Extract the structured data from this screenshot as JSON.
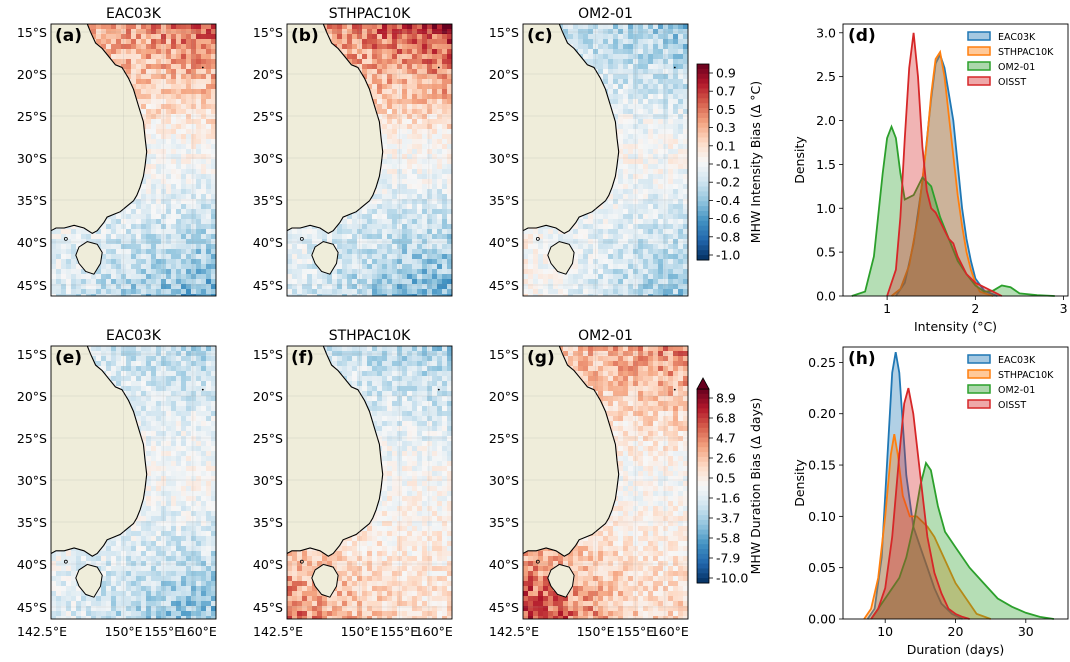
{
  "maps": {
    "lon_ticks": [
      "142.5°E",
      "150°E",
      "155°E",
      "160°E"
    ],
    "lat_ticks": [
      "15°S",
      "20°S",
      "25°S",
      "30°S",
      "35°S",
      "40°S",
      "45°S"
    ],
    "land_color": "#efedda",
    "rows": [
      {
        "colorbar": {
          "label": "MHW Intensity Bias (Δ °C)",
          "ticks": [
            "0.9",
            "0.7",
            "0.5",
            "0.3",
            "0.1",
            "-0.1",
            "-0.2",
            "-0.4",
            "-0.6",
            "-0.8",
            "-1.0"
          ],
          "extend_top": false
        },
        "panels": [
          {
            "tag": "(a)",
            "title": "EAC03K",
            "north": 0.55,
            "south": -0.45,
            "south_extra": 0.15
          },
          {
            "tag": "(b)",
            "title": "STHPAC10K",
            "north": 0.7,
            "south": -0.45,
            "south_extra": 0.15
          },
          {
            "tag": "(c)",
            "title": "OM2-01",
            "north": -0.35,
            "south": -0.35,
            "south_extra": 0.25
          }
        ]
      },
      {
        "colorbar": {
          "label": "MHW Duration Bias (Δ days)",
          "ticks": [
            "8.9",
            "6.8",
            "4.7",
            "2.6",
            "0.5",
            "-1.6",
            "-3.7",
            "-5.8",
            "-7.9",
            "-10.0"
          ],
          "extend_top": true
        },
        "panels": [
          {
            "tag": "(e)",
            "title": "EAC03K",
            "north": -0.25,
            "south": -0.4,
            "south_extra": 0.15
          },
          {
            "tag": "(f)",
            "title": "STHPAC10K",
            "north": -0.3,
            "south": 0.15,
            "south_extra": 0.45
          },
          {
            "tag": "(g)",
            "title": "OM2-01",
            "north": 0.45,
            "south": 0.2,
            "south_extra": 0.65
          }
        ]
      }
    ]
  },
  "chart_data": [
    {
      "type": "area",
      "panel": "(d)",
      "xlabel": "Intensity (°C)",
      "ylabel": "Density",
      "xlim": [
        0.5,
        3.05
      ],
      "ylim": [
        0,
        3.1
      ],
      "x_ticks": [
        1,
        2,
        3
      ],
      "y_ticks": [
        "0.0",
        "0.5",
        "1.0",
        "1.5",
        "2.0",
        "2.5",
        "3.0"
      ],
      "legend_position": "top-right",
      "series": [
        {
          "name": "EAC03K",
          "color": "#1f77b4",
          "fill": "#a5c8e1",
          "x": [
            1.1,
            1.2,
            1.3,
            1.4,
            1.5,
            1.55,
            1.6,
            1.65,
            1.7,
            1.75,
            1.8,
            1.85,
            1.9,
            1.95,
            2.0,
            2.1,
            2.25
          ],
          "y": [
            0,
            0.15,
            0.6,
            1.3,
            2.25,
            2.65,
            2.75,
            2.6,
            2.3,
            2.0,
            1.5,
            1.0,
            0.65,
            0.4,
            0.2,
            0.06,
            0
          ]
        },
        {
          "name": "STHPAC10K",
          "color": "#ff7f0e",
          "fill": "#ffc999",
          "x": [
            1.05,
            1.15,
            1.25,
            1.35,
            1.45,
            1.5,
            1.55,
            1.6,
            1.65,
            1.7,
            1.75,
            1.8,
            1.85,
            1.9,
            1.95,
            2.0,
            2.05,
            2.2
          ],
          "y": [
            0,
            0.08,
            0.35,
            0.9,
            1.75,
            2.3,
            2.7,
            2.78,
            2.5,
            2.05,
            1.6,
            1.15,
            0.8,
            0.5,
            0.3,
            0.15,
            0.05,
            0
          ]
        },
        {
          "name": "OM2-01",
          "color": "#2ca02c",
          "fill": "#acd7ac",
          "x": [
            0.6,
            0.75,
            0.85,
            0.95,
            1.0,
            1.05,
            1.1,
            1.15,
            1.2,
            1.3,
            1.4,
            1.5,
            1.6,
            1.7,
            1.8,
            1.9,
            2.0,
            2.1,
            2.2,
            2.3,
            2.4,
            2.5,
            2.7,
            2.9
          ],
          "y": [
            0,
            0.05,
            0.45,
            1.4,
            1.8,
            1.93,
            1.8,
            1.4,
            1.1,
            1.15,
            1.35,
            1.25,
            0.9,
            0.65,
            0.4,
            0.25,
            0.12,
            0.05,
            0.06,
            0.12,
            0.1,
            0.03,
            0.01,
            0
          ]
        },
        {
          "name": "OISST",
          "color": "#d62728",
          "fill": "#eea8a9",
          "x": [
            1.0,
            1.1,
            1.15,
            1.2,
            1.25,
            1.3,
            1.35,
            1.4,
            1.45,
            1.5,
            1.55,
            1.6,
            1.65,
            1.7,
            1.75,
            1.8,
            1.85,
            1.9,
            2.0,
            2.1,
            2.2,
            2.3
          ],
          "y": [
            0,
            0.3,
            0.9,
            1.8,
            2.6,
            3.0,
            2.5,
            1.7,
            1.2,
            1.0,
            0.95,
            0.85,
            0.75,
            0.65,
            0.6,
            0.45,
            0.35,
            0.25,
            0.15,
            0.1,
            0.05,
            0
          ]
        }
      ]
    },
    {
      "type": "area",
      "panel": "(h)",
      "xlabel": "Duration (days)",
      "ylabel": "Density",
      "xlim": [
        4,
        36
      ],
      "ylim": [
        0,
        0.265
      ],
      "x_ticks": [
        10,
        20,
        30
      ],
      "y_ticks": [
        "0.00",
        "0.05",
        "0.10",
        "0.15",
        "0.20",
        "0.25"
      ],
      "legend_position": "top-right",
      "series": [
        {
          "name": "EAC03K",
          "color": "#1f77b4",
          "fill": "#a5c8e1",
          "x": [
            7.5,
            8.5,
            9.5,
            10.5,
            11.0,
            11.5,
            12.0,
            12.5,
            13.0,
            14.0,
            15.0,
            16.0,
            17.0,
            18.0,
            19.5,
            21.0
          ],
          "y": [
            0,
            0.01,
            0.06,
            0.18,
            0.24,
            0.26,
            0.24,
            0.19,
            0.14,
            0.09,
            0.07,
            0.05,
            0.03,
            0.015,
            0.005,
            0
          ]
        },
        {
          "name": "STHPAC10K",
          "color": "#ff7f0e",
          "fill": "#ffc999",
          "x": [
            7,
            8,
            9,
            10,
            10.8,
            11.3,
            11.8,
            12.5,
            13.5,
            14.5,
            16,
            17,
            18,
            19,
            20,
            21,
            22,
            23,
            25
          ],
          "y": [
            0,
            0.01,
            0.04,
            0.1,
            0.16,
            0.18,
            0.16,
            0.12,
            0.1,
            0.1,
            0.09,
            0.08,
            0.065,
            0.05,
            0.035,
            0.025,
            0.015,
            0.005,
            0
          ]
        },
        {
          "name": "OM2-01",
          "color": "#2ca02c",
          "fill": "#acd7ac",
          "x": [
            8,
            9,
            10,
            11,
            12,
            13,
            14,
            15,
            15.8,
            16.5,
            17.5,
            18.5,
            20,
            22,
            24,
            26,
            28,
            30,
            32,
            34
          ],
          "y": [
            0,
            0.01,
            0.02,
            0.03,
            0.04,
            0.06,
            0.09,
            0.13,
            0.152,
            0.145,
            0.11,
            0.085,
            0.07,
            0.05,
            0.035,
            0.02,
            0.012,
            0.006,
            0.002,
            0
          ]
        },
        {
          "name": "OISST",
          "color": "#d62728",
          "fill": "#eea8a9",
          "x": [
            8,
            9,
            10,
            11,
            12,
            12.7,
            13.3,
            14,
            15,
            16,
            17,
            18,
            19,
            20,
            21,
            22
          ],
          "y": [
            0,
            0.01,
            0.03,
            0.08,
            0.16,
            0.21,
            0.225,
            0.2,
            0.14,
            0.08,
            0.045,
            0.025,
            0.01,
            0.005,
            0.002,
            0
          ]
        }
      ]
    }
  ]
}
